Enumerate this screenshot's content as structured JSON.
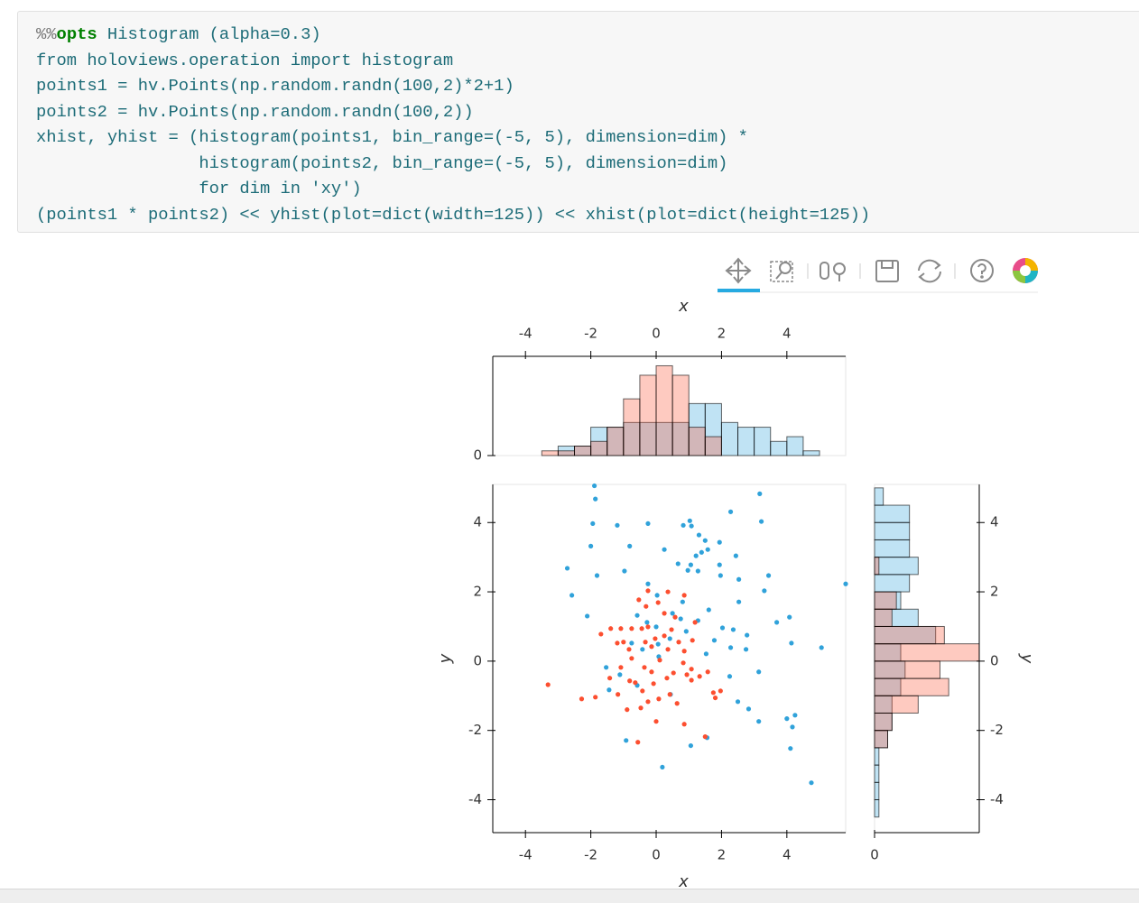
{
  "code": {
    "magic": [
      "%%",
      "opts",
      "Histogram (alpha=0.3)"
    ],
    "lines": [
      "from holoviews.operation import histogram",
      "points1 = hv.Points(np.random.randn(100,2)*2+1)",
      "points2 = hv.Points(np.random.randn(100,2))",
      "xhist, yhist = (histogram(points1, bin_range=(-5, 5), dimension=dim) *",
      "                histogram(points2, bin_range=(-5, 5), dimension=dim)",
      "                for dim in 'xy')",
      "(points1 * points2) << yhist(plot=dict(width=125)) << xhist(plot=dict(height=125))"
    ]
  },
  "chart_data": [
    {
      "type": "histogram",
      "orientation": "vertical",
      "x_label": "x",
      "alpha": 0.3,
      "bins": [
        -5,
        -4.5,
        -4,
        -3.5,
        -3,
        -2.5,
        -2,
        -1.5,
        -1,
        -0.5,
        0,
        0.5,
        1,
        1.5,
        2,
        2.5,
        3,
        3.5,
        4,
        4.5,
        5
      ],
      "series": [
        {
          "color": "#30a2da",
          "values": [
            0,
            0,
            0,
            0,
            2,
            2,
            6,
            6,
            7,
            7,
            7,
            7,
            11,
            11,
            7,
            6,
            6,
            3,
            4,
            1
          ]
        },
        {
          "color": "#fc4f30",
          "values": [
            0,
            0,
            0,
            1,
            1,
            2,
            3,
            6,
            12,
            17,
            19,
            17,
            6,
            4,
            0,
            0,
            0,
            0,
            0,
            0
          ]
        }
      ],
      "xlim": [
        -5,
        5.8
      ],
      "xticks": [
        -4,
        -2,
        0,
        2,
        4
      ],
      "ylim": [
        0,
        21
      ],
      "yticks": [
        0
      ]
    },
    {
      "type": "scatter",
      "x_label": "x",
      "y_label": "y",
      "series": [
        {
          "color": "#30a2da",
          "x": [
            -1.89,
            -1.86,
            -1.94,
            -1.19,
            -0.25,
            0.83,
            1.03,
            1.08,
            2.28,
            3.17,
            3.22,
            -2.0,
            -0.81,
            0.25,
            1.31,
            1.5,
            1.58,
            1.39,
            1.94,
            2.44,
            1.22,
            0.67,
            1.06,
            0.97,
            1.28,
            1.94,
            1.97,
            2.53,
            3.44,
            -2.72,
            -1.81,
            -0.97,
            -0.25,
            -2.58,
            0.03,
            0.81,
            3.31,
            2.53,
            1.61,
            1.28,
            2.03,
            3.69,
            4.08,
            5.8,
            -2.11,
            -0.58,
            -0.28,
            0.5,
            0.75,
            0.0,
            0.92,
            0.42,
            2.36,
            2.78,
            1.78,
            4.14,
            5.06,
            -0.75,
            -0.42,
            0.06,
            0.08,
            2.28,
            2.75,
            1.53,
            3.14,
            -1.53,
            -1.11,
            -1.44,
            -0.58,
            0.44,
            2.25,
            2.5,
            2.83,
            3.14,
            4.0,
            4.25,
            4.17,
            4.11,
            -0.92,
            1.06,
            1.56,
            0.19,
            4.75
          ],
          "y": [
            5.06,
            4.68,
            3.97,
            3.92,
            3.97,
            3.92,
            4.05,
            3.9,
            4.31,
            4.83,
            4.03,
            3.32,
            3.32,
            3.22,
            3.64,
            3.48,
            3.22,
            3.14,
            3.43,
            3.04,
            3.04,
            2.81,
            2.78,
            2.62,
            2.6,
            2.78,
            2.47,
            2.36,
            2.47,
            2.68,
            2.47,
            2.6,
            2.23,
            1.9,
            1.9,
            1.71,
            2.03,
            1.71,
            1.48,
            1.17,
            0.96,
            1.12,
            1.27,
            2.23,
            1.3,
            1.32,
            1.12,
            1.38,
            1.22,
            0.99,
            0.86,
            0.65,
            0.91,
            0.75,
            0.6,
            0.52,
            0.39,
            0.52,
            0.34,
            0.49,
            0.13,
            0.39,
            0.34,
            0.21,
            -0.31,
            -0.18,
            -0.39,
            -0.83,
            -0.7,
            -0.96,
            -0.44,
            -1.17,
            -1.38,
            -1.74,
            -1.66,
            -1.56,
            -1.9,
            -2.52,
            -2.29,
            -2.44,
            -2.21,
            -3.06,
            -3.51
          ]
        },
        {
          "color": "#fc4f30",
          "x": [
            -3.31,
            -2.28,
            -1.86,
            -1.69,
            -1.39,
            -1.08,
            -0.75,
            -0.44,
            -0.25,
            -0.31,
            -0.53,
            -0.25,
            0.36,
            0.06,
            0.25,
            0.58,
            1.11,
            1.08,
            0.83,
            0.94,
            1.08,
            1.33,
            1.58,
            1.75,
            1.97,
            1.81,
            0.64,
            0.42,
            0.08,
            -0.25,
            -0.47,
            -0.89,
            -1.17,
            -1.42,
            -1.08,
            -0.75,
            -0.36,
            -0.14,
            -0.64,
            0.11,
            0.36,
            0.69,
            0.86,
            -0.33,
            -0.14,
            -0.03,
            0.25,
            -0.83,
            -1.19,
            -1.0,
            0.0,
            -0.56,
            0.86,
            1.5,
            0.86,
            0.47,
            1.19,
            0.53,
            0.33,
            -0.08,
            -0.42,
            -0.81
          ],
          "y": [
            -0.68,
            -1.09,
            -1.04,
            0.78,
            0.94,
            0.94,
            0.94,
            0.94,
            0.99,
            1.58,
            1.77,
            2.03,
            2.0,
            1.69,
            1.38,
            1.27,
            0.6,
            -0.23,
            -0.05,
            -0.39,
            -0.55,
            -0.44,
            -0.31,
            -0.91,
            -0.86,
            -1.06,
            -1.22,
            -0.96,
            -1.09,
            -1.17,
            -1.35,
            -1.4,
            -0.96,
            -0.49,
            -0.18,
            0.08,
            -0.18,
            -0.31,
            -0.62,
            0.03,
            0.34,
            0.55,
            0.29,
            0.55,
            0.42,
            0.65,
            0.73,
            0.34,
            0.52,
            0.55,
            -1.74,
            -2.34,
            -1.82,
            -2.18,
            1.9,
            0.91,
            1.12,
            -0.34,
            -0.49,
            -0.65,
            -0.86,
            -0.57
          ]
        }
      ],
      "xlim": [
        -5,
        5.8
      ],
      "xticks": [
        -4,
        -2,
        0,
        2,
        4
      ],
      "ylim": [
        -4.95,
        5.1
      ],
      "yticks": [
        -4,
        -2,
        0,
        2,
        4
      ]
    },
    {
      "type": "histogram",
      "orientation": "horizontal",
      "y_label": "y",
      "alpha": 0.3,
      "bins": [
        -5,
        -4.5,
        -4,
        -3.5,
        -3,
        -2.5,
        -2,
        -1.5,
        -1,
        -0.5,
        0,
        0.5,
        1,
        1.5,
        2,
        2.5,
        3,
        3.5,
        4,
        4.5,
        5
      ],
      "series": [
        {
          "color": "#30a2da",
          "values": [
            0,
            1,
            1,
            1,
            1,
            3,
            4,
            4,
            6,
            7,
            6,
            14,
            10,
            6,
            8,
            10,
            8,
            8,
            8,
            2
          ]
        },
        {
          "color": "#fc4f30",
          "values": [
            0,
            0,
            0,
            0,
            0,
            3,
            4,
            10,
            17,
            15,
            24,
            16,
            4,
            5,
            0,
            1,
            0,
            0,
            0,
            0
          ]
        }
      ],
      "xlim": [
        0,
        24
      ],
      "xticks": [
        0
      ],
      "ylim": [
        -4.95,
        5.1
      ],
      "yticks": [
        -4,
        -2,
        0,
        2,
        4
      ]
    }
  ]
}
